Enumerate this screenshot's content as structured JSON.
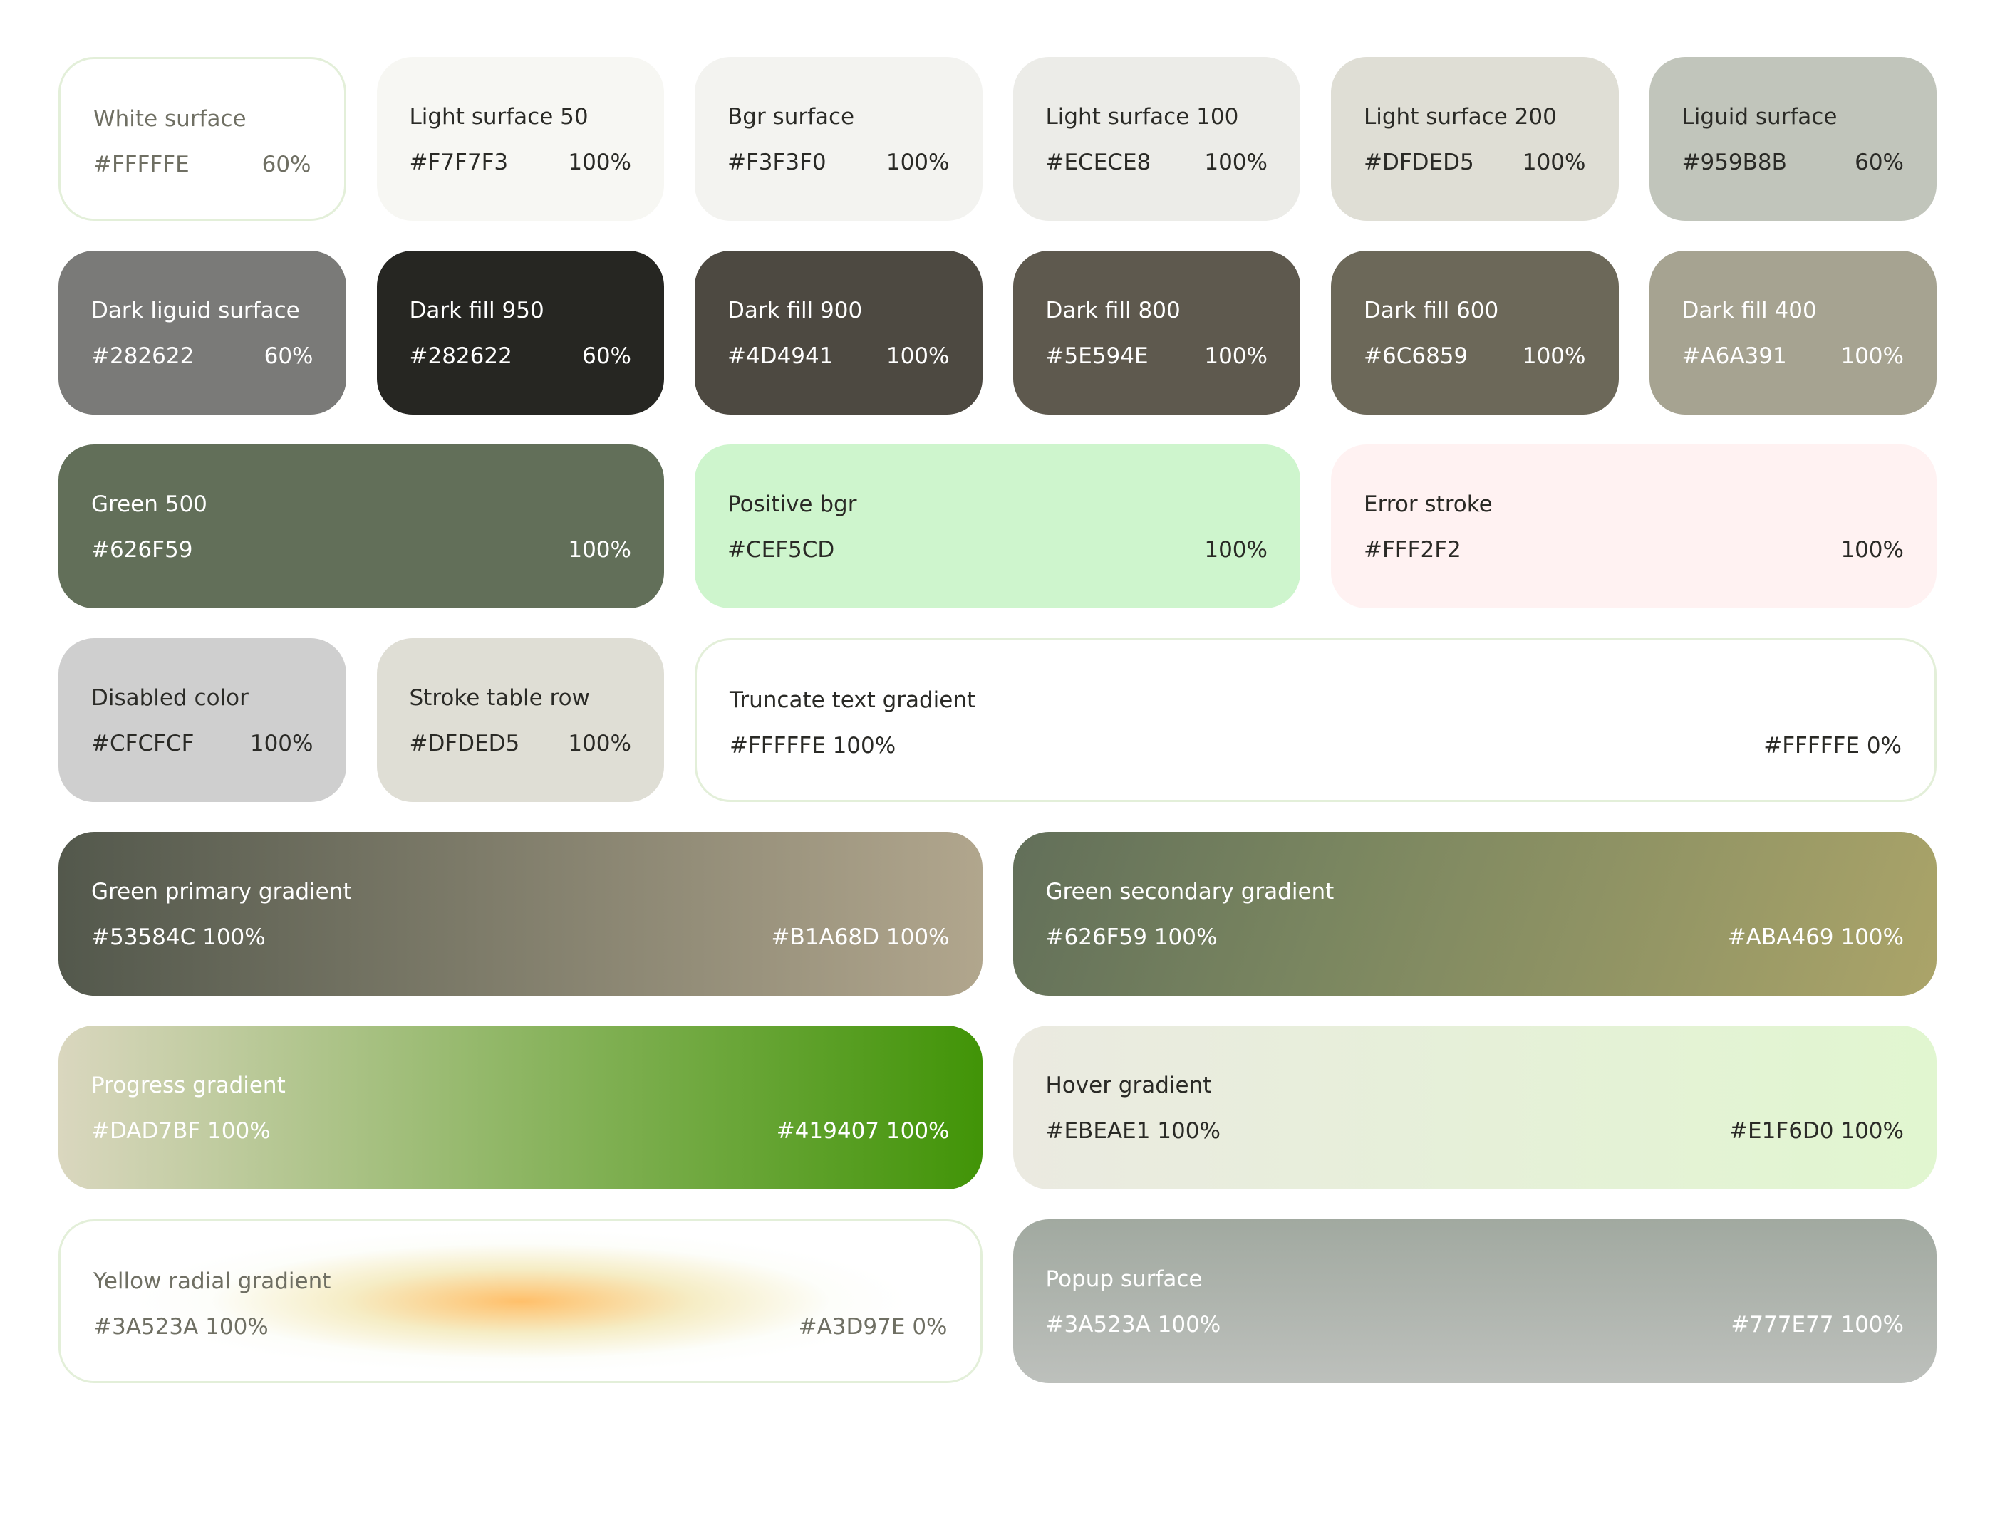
{
  "rows": [
    [
      {
        "name": "White surface",
        "hex": "#FFFFFE",
        "opacity": "60%"
      },
      {
        "name": "Light surface 50",
        "hex": "#F7F7F3",
        "opacity": "100%"
      },
      {
        "name": "Bgr surface",
        "hex": "#F3F3F0",
        "opacity": "100%"
      },
      {
        "name": "Light surface 100",
        "hex": "#ECECE8",
        "opacity": "100%"
      },
      {
        "name": "Light surface 200",
        "hex": "#DFDED5",
        "opacity": "100%"
      },
      {
        "name": "Liguid surface",
        "hex": "#959B8B",
        "opacity": "60%"
      }
    ],
    [
      {
        "name": "Dark liguid surface",
        "hex": "#282622",
        "opacity": "60%"
      },
      {
        "name": "Dark fill 950",
        "hex": "#282622",
        "opacity": "60%"
      },
      {
        "name": "Dark fill 900",
        "hex": "#4D4941",
        "opacity": "100%"
      },
      {
        "name": "Dark fill 800",
        "hex": "#5E594E",
        "opacity": "100%"
      },
      {
        "name": "Dark fill 600",
        "hex": "#6C6859",
        "opacity": "100%"
      },
      {
        "name": "Dark fill 400",
        "hex": "#A6A391",
        "opacity": "100%"
      }
    ],
    [
      {
        "name": "Green 500",
        "hex": "#626F59",
        "opacity": "100%"
      },
      {
        "name": "Positive bgr",
        "hex": "#CEF5CD",
        "opacity": "100%"
      },
      {
        "name": "Error stroke",
        "hex": "#FFF2F2",
        "opacity": "100%"
      }
    ],
    [
      {
        "name": "Disabled color",
        "hex": "#CFCFCF",
        "opacity": "100%"
      },
      {
        "name": "Stroke table row",
        "hex": "#DFDED5",
        "opacity": "100%"
      },
      {
        "name": "Truncate text gradient",
        "start": "#FFFFFE 100%",
        "end": "#FFFFFE 0%"
      }
    ],
    [
      {
        "name": "Green primary gradient",
        "start": "#53584C 100%",
        "end": "#B1A68D 100%"
      },
      {
        "name": "Green secondary gradient",
        "start": "#626F59 100%",
        "end": "#ABA469 100%"
      }
    ],
    [
      {
        "name": "Progress gradient",
        "start": "#DAD7BF 100%",
        "end": "#419407 100%"
      },
      {
        "name": "Hover gradient",
        "start": "#EBEAE1 100%",
        "end": "#E1F6D0 100%"
      }
    ],
    [
      {
        "name": "Yellow radial gradient",
        "start": "#3A523A 100%",
        "end": "#A3D97E 0%"
      },
      {
        "name": "Popup surface",
        "start": "#3A523A 100%",
        "end": "#777E77 100%"
      }
    ]
  ]
}
